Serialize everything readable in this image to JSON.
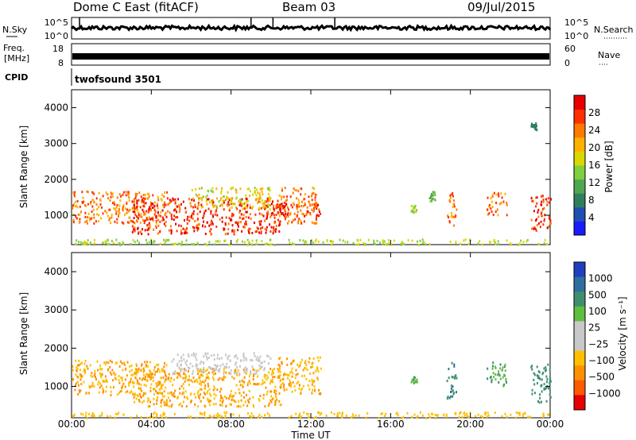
{
  "header": {
    "title": "Dome C East (fitACF)",
    "beam": "Beam 03",
    "date": "09/Jul/2015"
  },
  "panels": {
    "nsky": {
      "label": "N.Sky",
      "tick_top": "10^5",
      "tick_bottom": "10^0"
    },
    "nsearch": {
      "label": "N.Search",
      "tick_top": "10^5",
      "tick_bottom": "10^0"
    },
    "freq": {
      "label_line1": "Freq.",
      "label_line2": "[MHz]",
      "tick_top": "18",
      "tick_bottom": "8"
    },
    "nave": {
      "label": "Nave",
      "tick_top": "60",
      "tick_bottom": "0"
    },
    "cpid": {
      "label": "CPID",
      "program": "twofsound 3501"
    }
  },
  "chart_data": [
    {
      "type": "heatmap",
      "name_key": "power",
      "ylabel": "Slant Range [km]",
      "xlabel": "Time UT",
      "xlim": [
        "00:00",
        "24:00"
      ],
      "ylim": [
        180,
        4500
      ],
      "yticks": [
        1000,
        2000,
        3000,
        4000
      ],
      "xticks": [
        "00:00",
        "04:00",
        "08:00",
        "12:00",
        "16:00",
        "20:00",
        "00:00"
      ],
      "colorbar": {
        "label": "Power [dB]",
        "range": [
          0,
          32
        ],
        "ticks": [
          "4",
          "8",
          "12",
          "16",
          "20",
          "24",
          "28"
        ],
        "colors": [
          "#1a1aff",
          "#1f4fb0",
          "#2f7f5f",
          "#4fa84f",
          "#7fcf3f",
          "#d8d800",
          "#ffb000",
          "#ff7a00",
          "#ff3000",
          "#e80000"
        ]
      },
      "regions": [
        {
          "t_start": 0.0,
          "t_end": 4.8,
          "r_min": 800,
          "r_max": 1700,
          "value": 24
        },
        {
          "t_start": 3.0,
          "t_end": 10.5,
          "r_min": 500,
          "r_max": 1500,
          "value": 28
        },
        {
          "t_start": 6.0,
          "t_end": 10.0,
          "r_min": 1200,
          "r_max": 1800,
          "value": 18
        },
        {
          "t_start": 10.3,
          "t_end": 12.3,
          "r_min": 800,
          "r_max": 1800,
          "value": 24
        },
        {
          "t_start": 10.0,
          "t_end": 12.5,
          "r_min": 1000,
          "r_max": 1350,
          "value": 28
        },
        {
          "t_start": 17.0,
          "t_end": 17.3,
          "r_min": 1100,
          "r_max": 1300,
          "value": 16
        },
        {
          "t_start": 17.9,
          "t_end": 18.2,
          "r_min": 1400,
          "r_max": 1700,
          "value": 12
        },
        {
          "t_start": 18.8,
          "t_end": 19.3,
          "r_min": 700,
          "r_max": 1650,
          "value": 24
        },
        {
          "t_start": 20.8,
          "t_end": 21.8,
          "r_min": 1000,
          "r_max": 1650,
          "value": 24
        },
        {
          "t_start": 23.0,
          "t_end": 24.0,
          "r_min": 600,
          "r_max": 1600,
          "value": 28
        },
        {
          "t_start": 23.0,
          "t_end": 23.3,
          "r_min": 3400,
          "r_max": 3600,
          "value": 8
        },
        {
          "t_start": 0.0,
          "t_end": 24.0,
          "r_min": 200,
          "r_max": 350,
          "value": 16
        }
      ]
    },
    {
      "type": "heatmap",
      "name_key": "velocity",
      "ylabel": "Slant Range [km]",
      "xlabel": "Time UT",
      "xlim": [
        "00:00",
        "24:00"
      ],
      "ylim": [
        180,
        4500
      ],
      "yticks": [
        1000,
        2000,
        3000,
        4000
      ],
      "xticks": [
        "00:00",
        "04:00",
        "08:00",
        "12:00",
        "16:00",
        "20:00",
        "00:00"
      ],
      "colorbar": {
        "label": "Velocity [m s⁻¹]",
        "ticks": [
          "1000",
          "500",
          "100",
          "25",
          "−25",
          "−100",
          "−500",
          "−1000"
        ],
        "colors": [
          "#1f3fbf",
          "#2f6fa0",
          "#3f8f6f",
          "#5fbf3f",
          "#c8c8c8",
          "#c8c8c8",
          "#ffc000",
          "#ff9000",
          "#ff5a00",
          "#e80000"
        ]
      },
      "regions": [
        {
          "t_start": 0.0,
          "t_end": 4.8,
          "r_min": 800,
          "r_max": 1700,
          "value": -100
        },
        {
          "t_start": 3.0,
          "t_end": 10.5,
          "r_min": 500,
          "r_max": 1500,
          "value": -100
        },
        {
          "t_start": 5.0,
          "t_end": 10.0,
          "r_min": 1350,
          "r_max": 1900,
          "value": 0
        },
        {
          "t_start": 10.3,
          "t_end": 12.5,
          "r_min": 800,
          "r_max": 1800,
          "value": -100
        },
        {
          "t_start": 17.0,
          "t_end": 17.3,
          "r_min": 1100,
          "r_max": 1300,
          "value": 200
        },
        {
          "t_start": 18.8,
          "t_end": 19.3,
          "r_min": 700,
          "r_max": 1650,
          "value": 500
        },
        {
          "t_start": 20.8,
          "t_end": 21.8,
          "r_min": 1000,
          "r_max": 1650,
          "value": 200
        },
        {
          "t_start": 23.0,
          "t_end": 24.0,
          "r_min": 600,
          "r_max": 1600,
          "value": 300
        },
        {
          "t_start": 0.0,
          "t_end": 24.0,
          "r_min": 200,
          "r_max": 350,
          "value": -50
        }
      ]
    }
  ]
}
